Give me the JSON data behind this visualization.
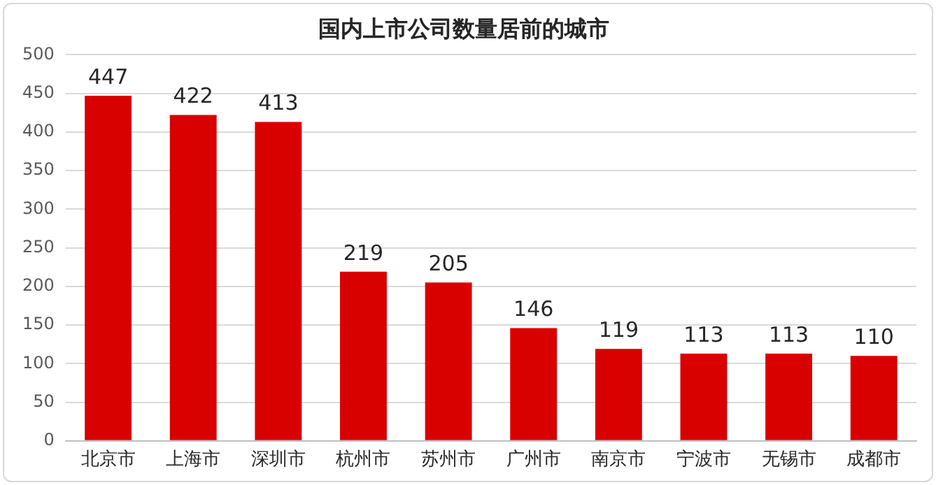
{
  "chart_data": {
    "type": "bar",
    "title": "国内上市公司数量居前的城市",
    "categories": [
      "北京市",
      "上海市",
      "深圳市",
      "杭州市",
      "苏州市",
      "广州市",
      "南京市",
      "宁波市",
      "无锡市",
      "成都市"
    ],
    "values": [
      447,
      422,
      413,
      219,
      205,
      146,
      119,
      113,
      113,
      110
    ],
    "color": "#d90000",
    "ylim": [
      0,
      500
    ],
    "yticks": [
      0,
      50,
      100,
      150,
      200,
      250,
      300,
      350,
      400,
      450,
      500
    ],
    "grid": "y",
    "data_labels": true,
    "legend": false
  }
}
